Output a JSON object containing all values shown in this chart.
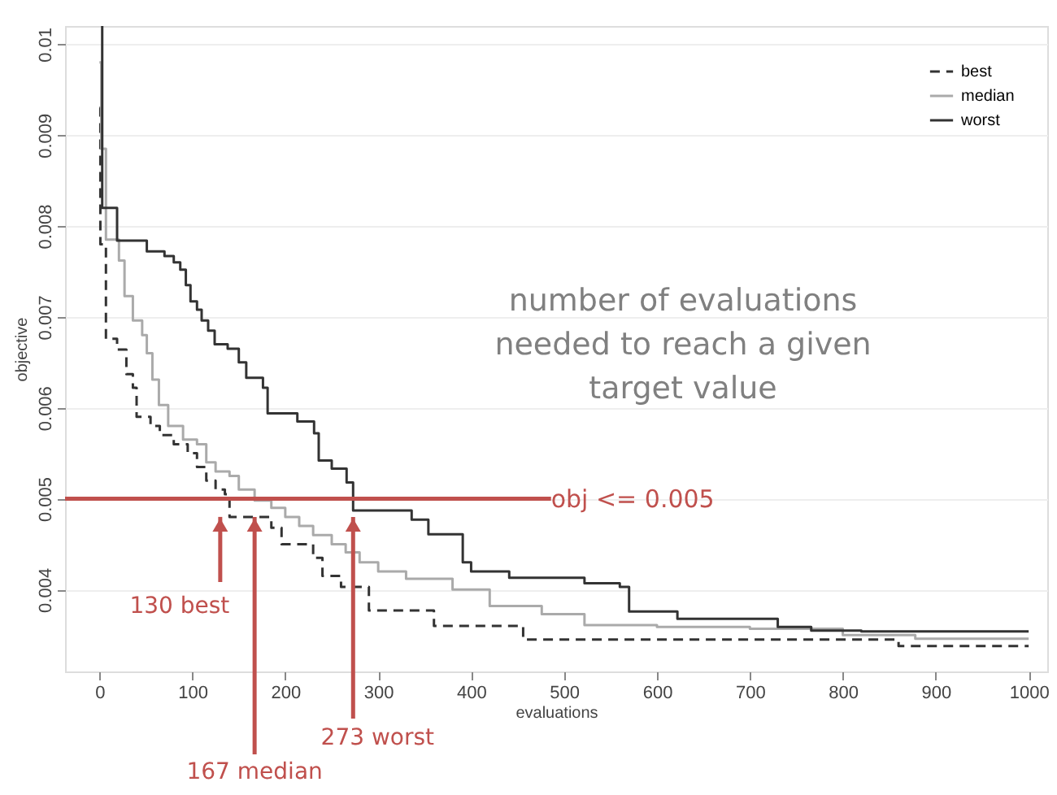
{
  "chart_data": {
    "type": "step",
    "xlabel": "evaluations",
    "ylabel": "objective",
    "xlim": [
      -37,
      1020
    ],
    "ylim": [
      0.0031,
      0.0102
    ],
    "xticks": [
      0,
      100,
      200,
      300,
      400,
      500,
      600,
      700,
      800,
      900,
      1000
    ],
    "yticks": [
      0.004,
      0.005,
      0.006,
      0.007,
      0.008,
      0.009,
      0.01
    ],
    "grid": "y",
    "legend": "top right",
    "series": [
      {
        "name": "best",
        "color": "#333333",
        "line_style": "dashed",
        "x": [
          0,
          1,
          7,
          19,
          29,
          36,
          40,
          55,
          65,
          80,
          95,
          105,
          115,
          125,
          135,
          140,
          185,
          196,
          230,
          240,
          260,
          290,
          360,
          456,
          860,
          1000
        ],
        "values": [
          0.0093,
          0.0078,
          0.00676,
          0.00664,
          0.00637,
          0.00622,
          0.0059,
          0.0058,
          0.0057,
          0.0056,
          0.0055,
          0.00535,
          0.0052,
          0.0051,
          0.00505,
          0.0048,
          0.00468,
          0.0045,
          0.00435,
          0.00415,
          0.00403,
          0.00377,
          0.0036,
          0.00345,
          0.00338,
          0.00338
        ]
      },
      {
        "name": "median",
        "color": "#aaaaaa",
        "line_style": "solid",
        "x": [
          0,
          2,
          7,
          21,
          27,
          36,
          46,
          51,
          57,
          64,
          74,
          90,
          105,
          115,
          125,
          140,
          150,
          167,
          185,
          200,
          215,
          230,
          250,
          265,
          280,
          300,
          330,
          380,
          420,
          476,
          522,
          600,
          700,
          800,
          878,
          1000
        ],
        "values": [
          0.0098,
          0.00885,
          0.00785,
          0.00762,
          0.00723,
          0.00696,
          0.0068,
          0.0066,
          0.00631,
          0.00603,
          0.0058,
          0.00565,
          0.0056,
          0.0054,
          0.0053,
          0.00525,
          0.0051,
          0.00498,
          0.0049,
          0.0048,
          0.0047,
          0.0046,
          0.0045,
          0.00441,
          0.0043,
          0.0042,
          0.00412,
          0.004,
          0.00382,
          0.00373,
          0.00361,
          0.00359,
          0.00357,
          0.0035,
          0.00346,
          0.00346
        ]
      },
      {
        "name": "worst",
        "color": "#333333",
        "line_style": "solid",
        "x": [
          2,
          3,
          19,
          51,
          70,
          80,
          87,
          93,
          98,
          105,
          110,
          117,
          124,
          138,
          150,
          158,
          176,
          181,
          213,
          231,
          236,
          250,
          266,
          273,
          336,
          354,
          391,
          400,
          441,
          522,
          560,
          570,
          622,
          730,
          766,
          820,
          1000
        ],
        "values": [
          0.0102,
          0.0082,
          0.00784,
          0.00772,
          0.00767,
          0.0076,
          0.00752,
          0.00735,
          0.00717,
          0.00708,
          0.00696,
          0.00685,
          0.0067,
          0.00665,
          0.0065,
          0.00633,
          0.00622,
          0.00594,
          0.00585,
          0.00572,
          0.00542,
          0.00533,
          0.00518,
          0.00487,
          0.00477,
          0.00461,
          0.0043,
          0.0042,
          0.00413,
          0.00407,
          0.00403,
          0.00376,
          0.00368,
          0.00359,
          0.00355,
          0.00354,
          0.00354
        ]
      }
    ],
    "ref_lines": [
      {
        "axis": "y",
        "value": 0.005,
        "color": "#c0504d",
        "line_style": "solid"
      }
    ],
    "annotations": [
      "number of evaluations\nneeded to reach a given\ntarget value",
      {
        "text": "obj <= 0.005",
        "x": 486,
        "y": 0.005
      },
      {
        "text": "130  best",
        "x": 130,
        "y": 0.0048
      },
      {
        "text": "167  median",
        "x": 167,
        "y": 0.0048
      },
      {
        "text": "273  worst",
        "x": 273,
        "y": 0.0048
      }
    ]
  }
}
